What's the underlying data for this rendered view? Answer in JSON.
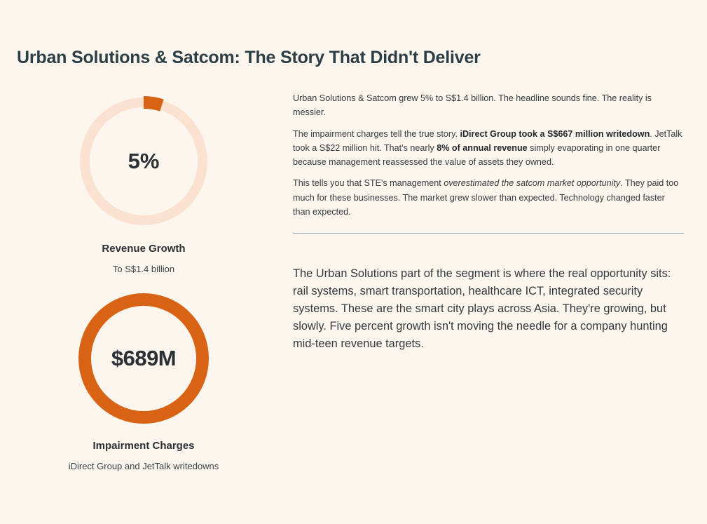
{
  "page": {
    "title": "Urban Solutions & Satcom: The Story That Didn't Deliver"
  },
  "metrics": [
    {
      "value": "5%",
      "fraction": 0.05,
      "label": "Revenue Growth",
      "sublabel": "To S$1.4 billion",
      "ring_color": "#d86314",
      "track_color": "#fbe2d0"
    },
    {
      "value": "$689M",
      "fraction": 1.0,
      "label": "Impairment Charges",
      "sublabel": "iDirect Group and JetTalk writedowns",
      "ring_color": "#d86314",
      "track_color": "#fbe2d0"
    }
  ],
  "body": {
    "p1": "Urban Solutions & Satcom grew 5% to S$1.4 billion. The headline sounds fine. The reality is messier.",
    "p2": {
      "t1": "The impairment charges tell the true story. ",
      "b1": "iDirect Group took a S$667 million writedown",
      "t2": ". JetTalk took a S$22 million hit. That's nearly ",
      "b2": "8% of annual revenue",
      "t3": " simply evaporating in one quarter because management reassessed the value of assets they owned."
    },
    "p3": {
      "t1": "This tells you that STE's management ",
      "i1": "overestimated the satcom market opportunity",
      "t2": ". They paid too much for these businesses. The market grew slower than expected. Technology changed faster than expected."
    },
    "callout": "The Urban Solutions part of the segment is where the real opportunity sits: rail systems, smart transportation, healthcare ICT, integrated security systems. These are the smart city plays across Asia. They're growing, but slowly. Five percent growth isn't moving the needle for a company hunting mid-teen revenue targets."
  },
  "colors": {
    "background": "#fdf6ee",
    "accent": "#d86314",
    "track": "#fbe2d0",
    "heading": "#2c3e46"
  }
}
